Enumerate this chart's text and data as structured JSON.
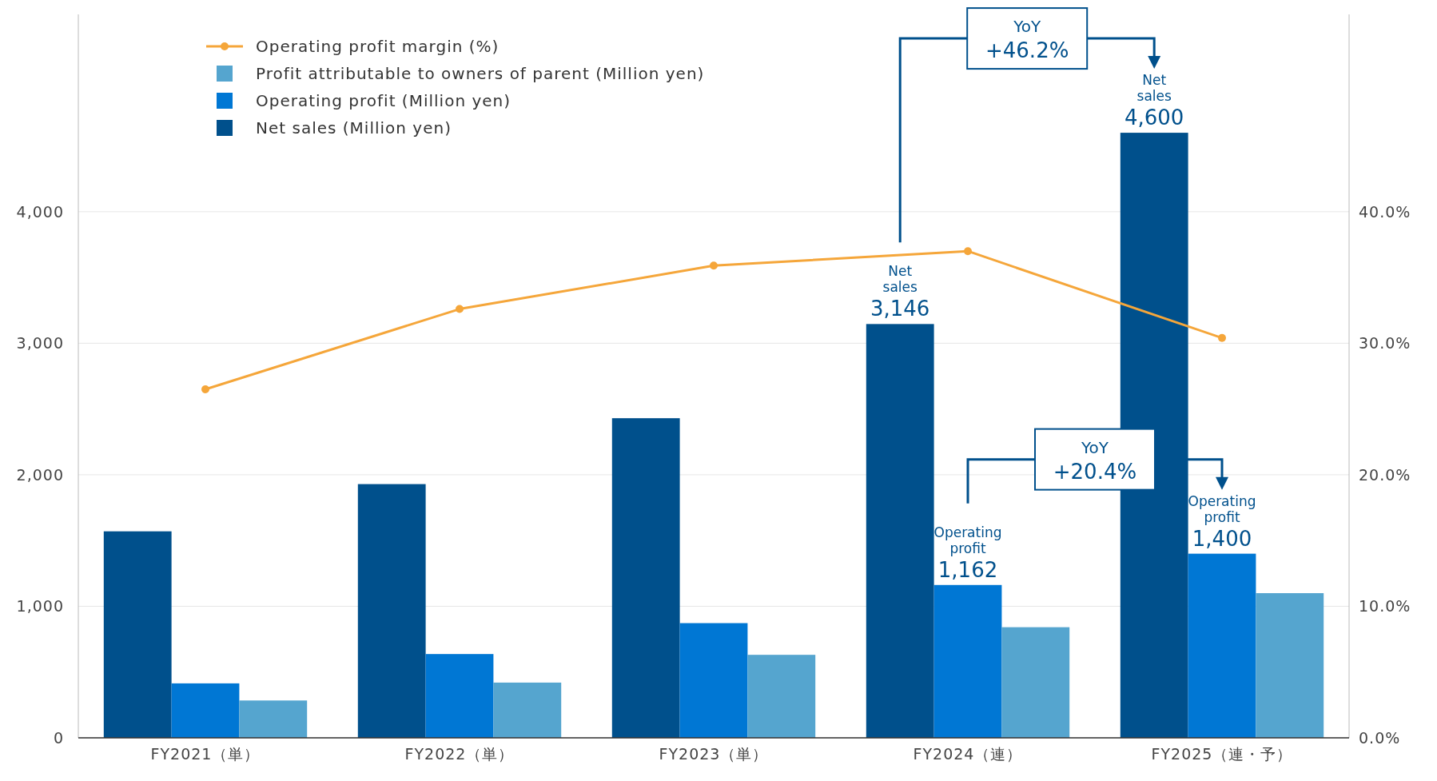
{
  "chart_data": {
    "type": "bar",
    "categories": [
      "FY2021（単）",
      "FY2022（単）",
      "FY2023（単）",
      "FY2024（連）",
      "FY2025（連・予）"
    ],
    "series": [
      {
        "name": "Net sales (Million yen)",
        "color": "#00508c",
        "values": [
          1570,
          1929,
          2430,
          3146,
          4600
        ],
        "value_labels": [
          null,
          null,
          null,
          "3,146",
          "4,600"
        ]
      },
      {
        "name": "Operating profit (Million yen)",
        "color": "#0077d4",
        "values": [
          414,
          637,
          872,
          1162,
          1400
        ],
        "value_labels": [
          null,
          null,
          null,
          "1,162",
          "1,400"
        ]
      },
      {
        "name": "Profit attributable to owners of parent (Million yen)",
        "color": "#55a5cf",
        "values": [
          284,
          420,
          631,
          841,
          1100
        ]
      },
      {
        "name": "Operating profit margin (%)",
        "color": "#f5a63a",
        "type": "line",
        "axis": "y2",
        "marker": "circle",
        "values": [
          26.5,
          32.6,
          35.9,
          37.0,
          30.4
        ]
      }
    ],
    "ylim": [
      0,
      5500
    ],
    "yticks": [
      {
        "value": 0,
        "label": "0"
      },
      {
        "value": 1000,
        "label": "1,000"
      },
      {
        "value": 2000,
        "label": "2,000"
      },
      {
        "value": 3000,
        "label": "3,000"
      },
      {
        "value": 4000,
        "label": "4,000"
      }
    ],
    "y2lim": [
      0,
      55
    ],
    "y2ticks": [
      {
        "value": 0,
        "label": "0.0%"
      },
      {
        "value": 10,
        "label": "10.0%"
      },
      {
        "value": 20,
        "label": "20.0%"
      },
      {
        "value": 30,
        "label": "30.0%"
      },
      {
        "value": 40,
        "label": "40.0%"
      }
    ],
    "grid": "y",
    "legend": "top left",
    "annotations": [
      "Net sales",
      "Net sales",
      "Operating profit",
      "Operating profit",
      "YoY +46.2%",
      "YoY +20.4%"
    ]
  }
}
